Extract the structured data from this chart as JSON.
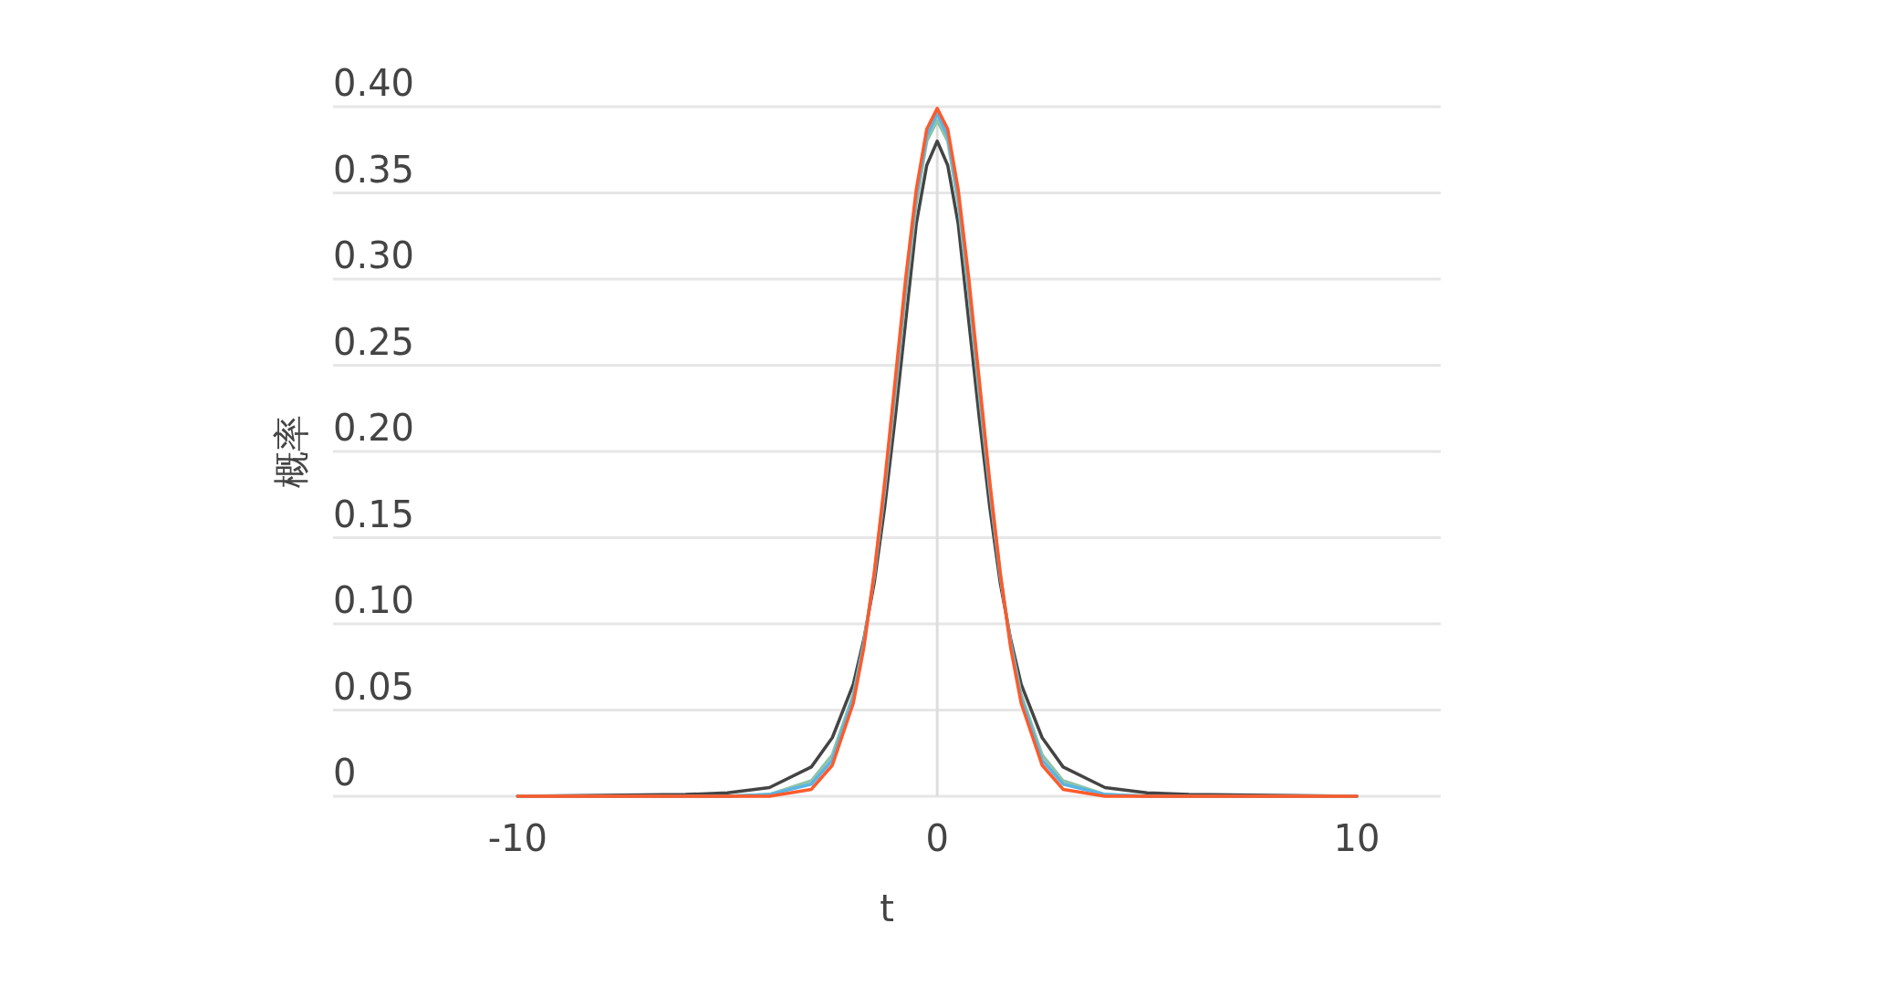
{
  "chart_data": {
    "type": "line",
    "xlabel": "t",
    "ylabel": "概率",
    "x": [
      -10,
      -6,
      -5,
      -4,
      -3,
      -2.5,
      -2,
      -1.75,
      -1.5,
      -1.25,
      -1,
      -0.75,
      -0.5,
      -0.25,
      0,
      0.25,
      0.5,
      0.75,
      1,
      1.25,
      1.5,
      1.75,
      2,
      2.5,
      3,
      4,
      5,
      6,
      10
    ],
    "series": [
      {
        "color": "#444444",
        "values": [
          0,
          0.001,
          0.002,
          0.005,
          0.017,
          0.034,
          0.065,
          0.091,
          0.124,
          0.168,
          0.22,
          0.276,
          0.332,
          0.366,
          0.38,
          0.366,
          0.332,
          0.276,
          0.22,
          0.168,
          0.124,
          0.091,
          0.065,
          0.034,
          0.017,
          0.005,
          0.002,
          0.001,
          0
        ]
      },
      {
        "color": "#8fc3a8",
        "values": [
          0,
          0,
          0,
          0.001,
          0.009,
          0.024,
          0.059,
          0.089,
          0.128,
          0.178,
          0.234,
          0.292,
          0.344,
          0.38,
          0.392,
          0.38,
          0.344,
          0.292,
          0.234,
          0.178,
          0.128,
          0.089,
          0.059,
          0.024,
          0.009,
          0.001,
          0,
          0,
          0
        ]
      },
      {
        "color": "#5ab4e5",
        "values": [
          0,
          0,
          0,
          0.001,
          0.007,
          0.021,
          0.057,
          0.088,
          0.129,
          0.18,
          0.238,
          0.297,
          0.348,
          0.383,
          0.396,
          0.383,
          0.348,
          0.297,
          0.238,
          0.18,
          0.129,
          0.088,
          0.057,
          0.021,
          0.007,
          0.001,
          0,
          0,
          0
        ]
      },
      {
        "color": "#ff5a2a",
        "values": [
          0,
          0,
          0,
          0,
          0.004,
          0.018,
          0.054,
          0.086,
          0.13,
          0.183,
          0.242,
          0.301,
          0.352,
          0.387,
          0.399,
          0.387,
          0.352,
          0.301,
          0.242,
          0.183,
          0.13,
          0.086,
          0.054,
          0.018,
          0.004,
          0,
          0,
          0,
          0
        ]
      }
    ],
    "xlim": [
      -14.4,
      12
    ],
    "xticks": [
      -10,
      0,
      10
    ],
    "ylim": [
      0,
      0.4
    ],
    "yticks": [
      0,
      {
        "value": 0.05,
        "label": "0.05"
      },
      {
        "value": 0.1,
        "label": "0.10"
      },
      {
        "value": 0.15,
        "label": "0.15"
      },
      {
        "value": 0.2,
        "label": "0.20"
      },
      {
        "value": 0.25,
        "label": "0.25"
      },
      {
        "value": 0.3,
        "label": "0.30"
      },
      {
        "value": 0.35,
        "label": "0.35"
      },
      {
        "value": 0.4,
        "label": "0.40"
      }
    ],
    "ref_lines": [
      {
        "axis": "x",
        "value": 0,
        "color": "#dddddd"
      }
    ],
    "grid": "y"
  }
}
